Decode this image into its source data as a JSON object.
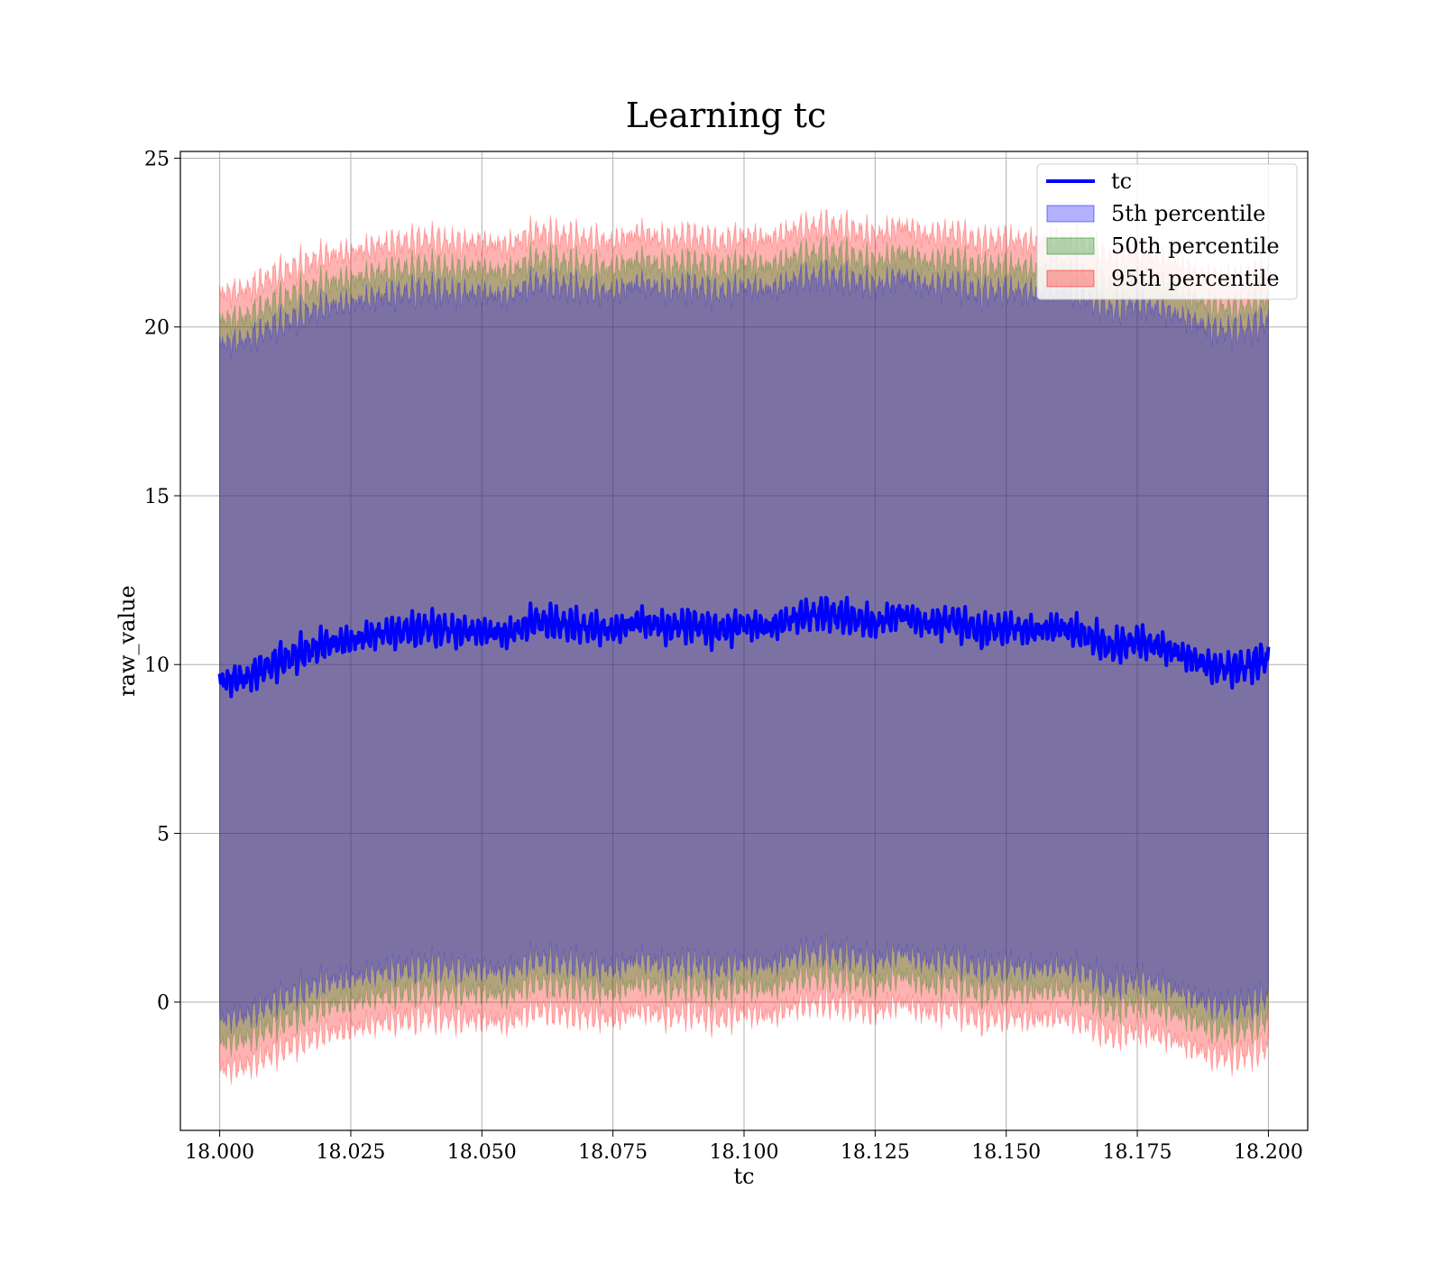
{
  "chart_data": {
    "type": "line",
    "title": "Learning tc",
    "xlabel": "tc",
    "ylabel": "raw_value",
    "xlim": [
      17.9925,
      18.2075
    ],
    "ylim": [
      -3.8,
      25.2
    ],
    "x_ticks": [
      "18.000",
      "18.025",
      "18.050",
      "18.075",
      "18.100",
      "18.125",
      "18.150",
      "18.175",
      "18.200"
    ],
    "y_ticks": [
      "0",
      "5",
      "10",
      "15",
      "20",
      "25"
    ],
    "grid": true,
    "legend_position": "top-right",
    "legend": [
      "tc",
      "5th percentile",
      "50th percentile",
      "95th percentile"
    ],
    "colors": {
      "line": "#0000ff",
      "band_5": "#0000ff",
      "band_50": "#008000",
      "band_95": "#ff0000",
      "grid": "#b0b0b0"
    },
    "series": [
      {
        "name": "tc",
        "x": [
          18.0,
          18.005,
          18.01,
          18.015,
          18.02,
          18.025,
          18.03,
          18.035,
          18.04,
          18.045,
          18.05,
          18.055,
          18.06,
          18.065,
          18.07,
          18.075,
          18.08,
          18.085,
          18.09,
          18.095,
          18.1,
          18.105,
          18.11,
          18.115,
          18.12,
          18.125,
          18.13,
          18.135,
          18.14,
          18.145,
          18.15,
          18.155,
          18.16,
          18.165,
          18.17,
          18.175,
          18.18,
          18.185,
          18.19,
          18.195,
          18.2
        ],
        "y": [
          9.5,
          9.6,
          10.0,
          10.3,
          10.6,
          10.7,
          10.9,
          11.0,
          11.1,
          11.0,
          11.0,
          10.9,
          11.3,
          11.2,
          11.1,
          11.0,
          11.3,
          11.1,
          11.2,
          11.0,
          11.2,
          11.1,
          11.4,
          11.5,
          11.4,
          11.2,
          11.5,
          11.2,
          11.3,
          11.0,
          11.1,
          11.0,
          11.1,
          10.9,
          10.5,
          10.7,
          10.5,
          10.2,
          9.9,
          9.9,
          10.2
        ]
      },
      {
        "name": "5th percentile",
        "note_lower": "median - 10.0",
        "note_upper": "median + 10.0"
      },
      {
        "name": "50th percentile",
        "note_lower": "median - 10.7",
        "note_upper": "median + 10.7"
      },
      {
        "name": "95th percentile",
        "note_lower": "median - 11.5",
        "note_upper": "median + 11.5"
      }
    ],
    "band_half_widths": [
      10.0,
      10.7,
      11.5
    ]
  }
}
